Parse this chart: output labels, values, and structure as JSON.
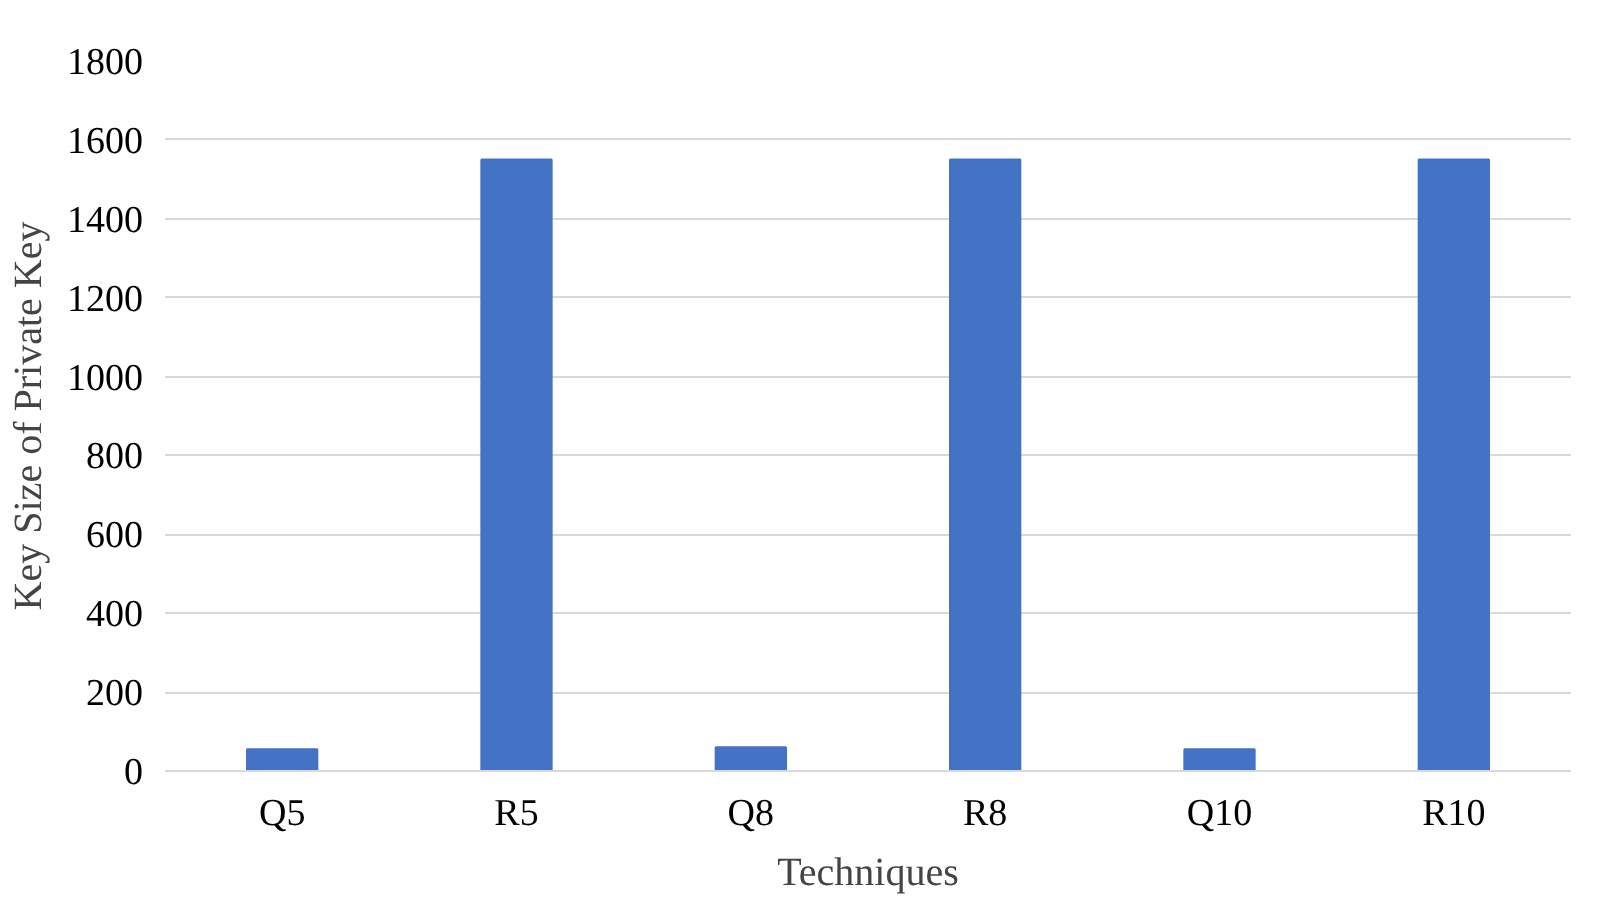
{
  "chart_data": {
    "type": "bar",
    "xlabel": "Techniques",
    "ylabel": "Key Size of Private Key",
    "categories": [
      "Q5",
      "R5",
      "Q8",
      "R8",
      "Q10",
      "R10"
    ],
    "values": [
      55,
      1550,
      60,
      1550,
      55,
      1550
    ],
    "color": "#4472c4",
    "ylim": [
      0,
      1800
    ],
    "yticks": [
      0,
      200,
      400,
      600,
      800,
      1000,
      1200,
      1400,
      1600,
      1800
    ],
    "grid": "y"
  }
}
